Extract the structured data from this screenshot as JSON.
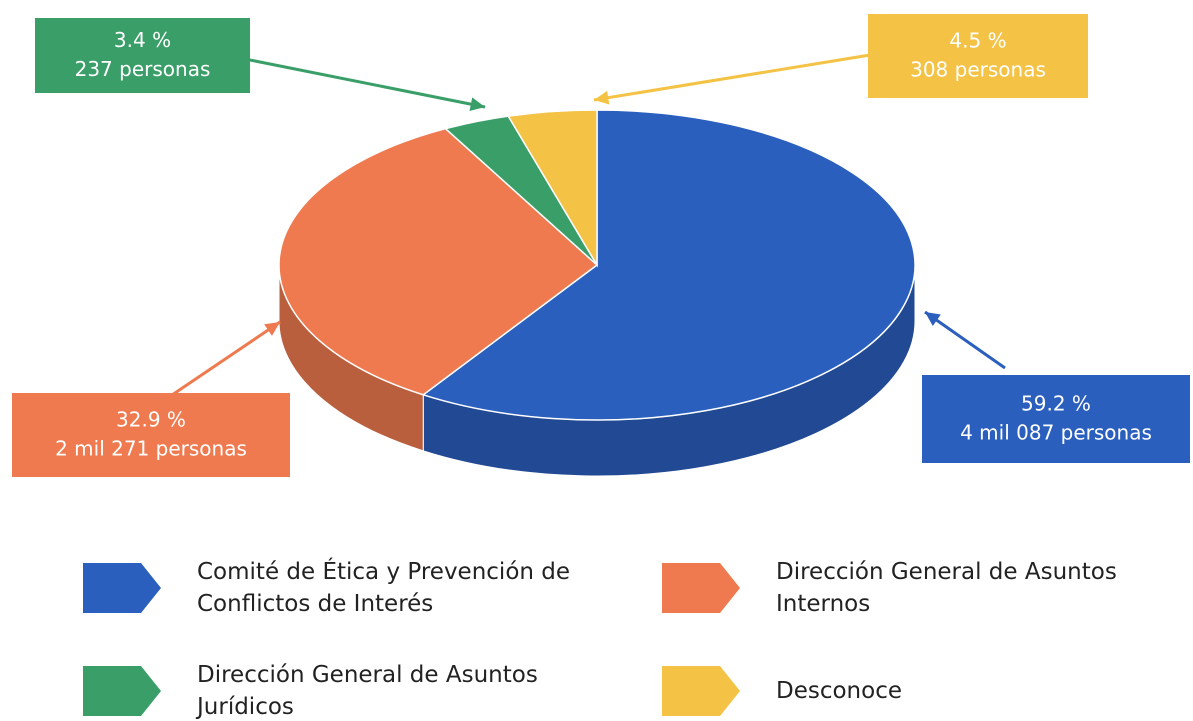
{
  "chart_data": {
    "type": "pie3d",
    "categories": [
      "Comité de Ética y Prevención de Conflictos de Interés",
      "Dirección General de Asuntos Internos",
      "Dirección General de Asuntos Jurídicos",
      "Desconoce"
    ],
    "values": [
      59.2,
      32.9,
      3.4,
      4.5
    ],
    "value_labels": [
      "59.2 %",
      "32.9 %",
      "3.4 %",
      "4.5 %"
    ],
    "person_labels": [
      "4 mil 087 personas",
      "2 mil 271 personas",
      "237 personas",
      "308 personas"
    ],
    "colors": [
      "#2b5fbe",
      "#ef7a4f",
      "#3a9e68",
      "#f4c244"
    ],
    "legend": "bottom"
  }
}
